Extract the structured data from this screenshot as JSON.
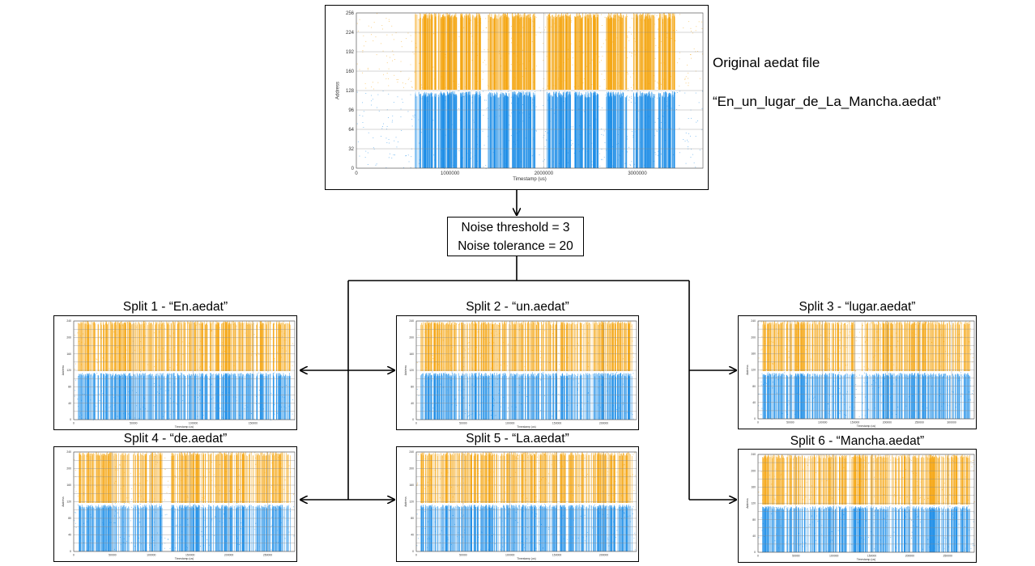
{
  "colors": {
    "upper_channel": "#f5a50f",
    "lower_channel": "#1a8ce6",
    "grid": "#888888",
    "frame": "#000000",
    "arrow": "#000000"
  },
  "original": {
    "label": "Original aedat file",
    "filename": "“En_un_lugar_de_La_Mancha.aedat”",
    "plot": {
      "y_label": "Address",
      "x_label": "Timestamp (us)",
      "y_ticks": [
        "0",
        "32",
        "64",
        "96",
        "128",
        "160",
        "192",
        "224",
        "256"
      ],
      "x_ticks": [
        "0",
        "1000000",
        "2000000",
        "3000000"
      ]
    }
  },
  "parameters": {
    "threshold": "Noise threshold = 3",
    "tolerance": "Noise tolerance = 20"
  },
  "splits": [
    {
      "title": "Split 1  - “En.aedat”",
      "y_label": "Address",
      "x_label": "Timestamp (us)",
      "y_ticks": [
        "0",
        "20",
        "40",
        "60",
        "80",
        "100",
        "120",
        "140",
        "160",
        "180",
        "200",
        "220",
        "240"
      ],
      "x_ticks": [
        "0",
        "50000",
        "100000",
        "150000"
      ]
    },
    {
      "title": "Split 2  - “un.aedat”",
      "y_label": "Address",
      "x_label": "Timestamp (us)",
      "y_ticks": [
        "0",
        "20",
        "40",
        "60",
        "80",
        "100",
        "120",
        "140",
        "160",
        "180",
        "200",
        "220",
        "240"
      ],
      "x_ticks": [
        "0",
        "50000",
        "100000",
        "150000",
        "200000"
      ]
    },
    {
      "title": "Split 3  - “lugar.aedat”",
      "y_label": "Address",
      "x_label": "Timestamp (us)",
      "y_ticks": [
        "0",
        "20",
        "40",
        "60",
        "80",
        "100",
        "120",
        "140",
        "160",
        "180",
        "200",
        "220",
        "240"
      ],
      "x_ticks": [
        "0",
        "50000",
        "100000",
        "150000",
        "200000",
        "250000",
        "300000"
      ]
    },
    {
      "title": "Split 4  - “de.aedat”",
      "y_label": "Address",
      "x_label": "Timestamp (us)",
      "y_ticks": [
        "0",
        "20",
        "40",
        "60",
        "80",
        "100",
        "120",
        "140",
        "160",
        "180",
        "200",
        "220",
        "240"
      ],
      "x_ticks": [
        "0",
        "50000",
        "100000",
        "150000",
        "200000",
        "250000"
      ]
    },
    {
      "title": "Split 5  - “La.aedat”",
      "y_label": "Address",
      "x_label": "Timestamp (us)",
      "y_ticks": [
        "0",
        "20",
        "40",
        "60",
        "80",
        "100",
        "120",
        "140",
        "160",
        "180",
        "200",
        "220",
        "240"
      ],
      "x_ticks": [
        "0",
        "50000",
        "100000",
        "150000",
        "200000"
      ]
    },
    {
      "title": "Split 6  - “Mancha.aedat”",
      "y_label": "Address",
      "x_label": "Timestamp (us)",
      "y_ticks": [
        "0",
        "20",
        "40",
        "60",
        "80",
        "100",
        "120",
        "140",
        "160",
        "180",
        "200",
        "220",
        "240"
      ],
      "x_ticks": [
        "0",
        "50000",
        "100000",
        "150000",
        "200000",
        "250000"
      ]
    }
  ]
}
